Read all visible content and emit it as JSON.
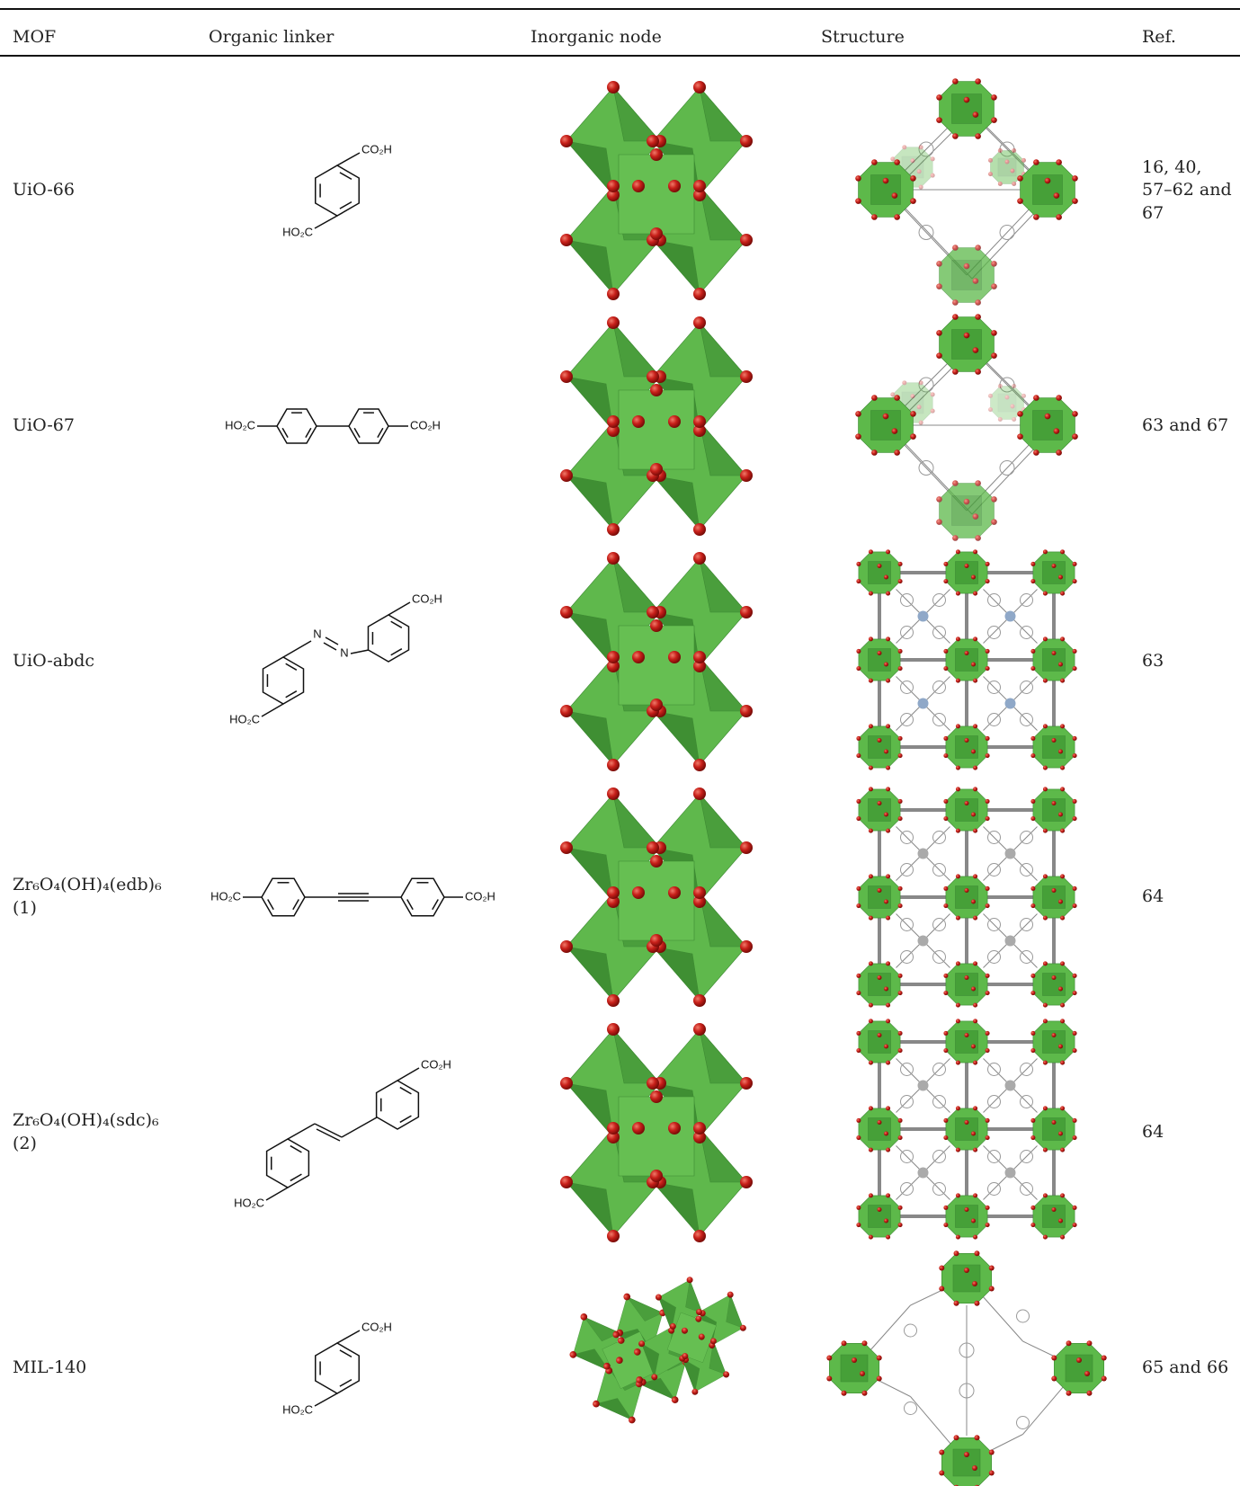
{
  "header": {
    "columns": [
      "MOF",
      "Organic linker",
      "Inorganic node",
      "Structure",
      "Ref."
    ]
  },
  "table": {
    "rows": [
      {
        "mof": "UiO-66",
        "linker_labels": [
          "CO₂H",
          "HO₂C"
        ],
        "ref": "16, 40, 57–62 and 67"
      },
      {
        "mof": "UiO-67",
        "linker_labels": [
          "HO₂C",
          "CO₂H"
        ],
        "ref": "63 and 67"
      },
      {
        "mof": "UiO-abdc",
        "linker_labels": [
          "CO₂H",
          "N",
          "N",
          "HO₂C"
        ],
        "ref": "63"
      },
      {
        "mof": "Zr₆O₄(OH)₄(edb)₆ (1)",
        "linker_labels": [
          "HO₂C",
          "CO₂H"
        ],
        "ref": "64"
      },
      {
        "mof": "Zr₆O₄(OH)₄(sdc)₆ (2)",
        "linker_labels": [
          "CO₂H",
          "HO₂C"
        ],
        "ref": "64"
      },
      {
        "mof": "MIL-140",
        "linker_labels": [
          "CO₂H",
          "HO₂C"
        ],
        "ref": "65 and 66"
      }
    ]
  }
}
